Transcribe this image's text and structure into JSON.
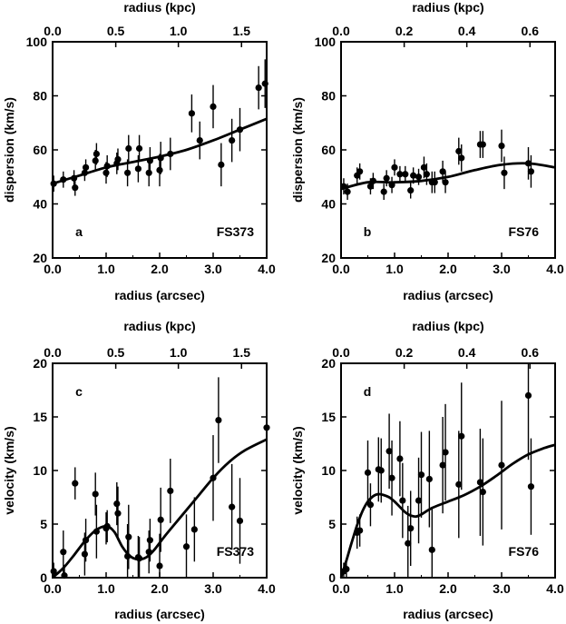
{
  "chart_data": [
    {
      "type": "scatter",
      "panel_label": "a",
      "object_label": "FS373",
      "xlabel": "radius (arcsec)",
      "ylabel": "dispersion (km/s)",
      "top_xlabel": "radius (kpc)",
      "xlim": [
        0,
        4
      ],
      "ylim": [
        20,
        100
      ],
      "xticks": [
        0,
        1,
        2,
        3,
        4
      ],
      "xtick_labels": [
        "0.0",
        "1.0",
        "2.0",
        "3.0",
        "4.0"
      ],
      "yticks": [
        20,
        40,
        60,
        80,
        100
      ],
      "ytick_labels": [
        "20",
        "40",
        "60",
        "80",
        "100"
      ],
      "top_ticks_arcsec": [
        0.0,
        1.18,
        2.35,
        3.53
      ],
      "top_tick_labels": [
        "0.0",
        "0.5",
        "1.0",
        "1.5"
      ],
      "points": [
        {
          "x": 0.02,
          "y": 47.5,
          "err": 3
        },
        {
          "x": 0.2,
          "y": 49,
          "err": 3
        },
        {
          "x": 0.4,
          "y": 49.5,
          "err": 3
        },
        {
          "x": 0.42,
          "y": 46,
          "err": 3
        },
        {
          "x": 0.6,
          "y": 51.5,
          "err": 3
        },
        {
          "x": 0.62,
          "y": 53.5,
          "err": 3
        },
        {
          "x": 0.8,
          "y": 56,
          "err": 4
        },
        {
          "x": 0.82,
          "y": 58.5,
          "err": 4
        },
        {
          "x": 1.0,
          "y": 51.5,
          "err": 4
        },
        {
          "x": 1.02,
          "y": 54,
          "err": 4
        },
        {
          "x": 1.2,
          "y": 55,
          "err": 4
        },
        {
          "x": 1.22,
          "y": 56.5,
          "err": 4
        },
        {
          "x": 1.4,
          "y": 51.5,
          "err": 5
        },
        {
          "x": 1.42,
          "y": 60.5,
          "err": 5
        },
        {
          "x": 1.6,
          "y": 53,
          "err": 5
        },
        {
          "x": 1.62,
          "y": 60.5,
          "err": 5
        },
        {
          "x": 1.8,
          "y": 51.5,
          "err": 5
        },
        {
          "x": 1.82,
          "y": 56,
          "err": 5
        },
        {
          "x": 2.0,
          "y": 52.5,
          "err": 6
        },
        {
          "x": 2.02,
          "y": 57,
          "err": 6
        },
        {
          "x": 2.2,
          "y": 58.5,
          "err": 6
        },
        {
          "x": 2.6,
          "y": 73.5,
          "err": 7
        },
        {
          "x": 2.75,
          "y": 63.5,
          "err": 7
        },
        {
          "x": 3.0,
          "y": 76,
          "err": 8
        },
        {
          "x": 3.15,
          "y": 54.5,
          "err": 8
        },
        {
          "x": 3.35,
          "y": 63.5,
          "err": 8
        },
        {
          "x": 3.5,
          "y": 67.5,
          "err": 8
        },
        {
          "x": 3.85,
          "y": 83,
          "err": 8
        },
        {
          "x": 3.97,
          "y": 84.5,
          "err": 9
        }
      ],
      "model": {
        "x": [
          0,
          0.5,
          1.0,
          1.5,
          2.0,
          2.5,
          3.0,
          3.5,
          4.0
        ],
        "y": [
          47.5,
          50.5,
          53.5,
          55.5,
          57.5,
          60,
          63.5,
          67.5,
          71.5
        ]
      }
    },
    {
      "type": "scatter",
      "panel_label": "b",
      "object_label": "FS76",
      "xlabel": "radius (arcsec)",
      "ylabel": "dispersion (km/s)",
      "top_xlabel": "radius (kpc)",
      "xlim": [
        0,
        4
      ],
      "ylim": [
        20,
        100
      ],
      "xticks": [
        0,
        1,
        2,
        3,
        4
      ],
      "xtick_labels": [
        "0.0",
        "1.0",
        "2.0",
        "3.0",
        "4.0"
      ],
      "yticks": [
        20,
        40,
        60,
        80,
        100
      ],
      "ytick_labels": [
        "20",
        "40",
        "60",
        "80",
        "100"
      ],
      "top_ticks_arcsec": [
        0.0,
        1.18,
        2.35,
        3.53
      ],
      "top_tick_labels": [
        "0.0",
        "0.2",
        "0.4",
        "0.6"
      ],
      "points": [
        {
          "x": 0.05,
          "y": 46.5,
          "err": 3
        },
        {
          "x": 0.12,
          "y": 44.5,
          "err": 3
        },
        {
          "x": 0.3,
          "y": 50.5,
          "err": 3
        },
        {
          "x": 0.35,
          "y": 52,
          "err": 3
        },
        {
          "x": 0.55,
          "y": 46.5,
          "err": 3
        },
        {
          "x": 0.6,
          "y": 48.5,
          "err": 3
        },
        {
          "x": 0.8,
          "y": 44.5,
          "err": 3
        },
        {
          "x": 0.85,
          "y": 49.5,
          "err": 3
        },
        {
          "x": 0.95,
          "y": 47,
          "err": 3
        },
        {
          "x": 1.0,
          "y": 53.5,
          "err": 3
        },
        {
          "x": 1.1,
          "y": 51,
          "err": 3
        },
        {
          "x": 1.2,
          "y": 51,
          "err": 3
        },
        {
          "x": 1.3,
          "y": 45,
          "err": 3
        },
        {
          "x": 1.35,
          "y": 50.5,
          "err": 3
        },
        {
          "x": 1.45,
          "y": 50,
          "err": 3
        },
        {
          "x": 1.55,
          "y": 53.5,
          "err": 4
        },
        {
          "x": 1.6,
          "y": 51,
          "err": 4
        },
        {
          "x": 1.7,
          "y": 48,
          "err": 4
        },
        {
          "x": 1.75,
          "y": 48,
          "err": 4
        },
        {
          "x": 1.9,
          "y": 52,
          "err": 4
        },
        {
          "x": 1.95,
          "y": 48,
          "err": 4
        },
        {
          "x": 2.2,
          "y": 59.5,
          "err": 5
        },
        {
          "x": 2.25,
          "y": 57,
          "err": 5
        },
        {
          "x": 2.6,
          "y": 62,
          "err": 5
        },
        {
          "x": 2.65,
          "y": 62,
          "err": 5
        },
        {
          "x": 3.0,
          "y": 61.5,
          "err": 6
        },
        {
          "x": 3.05,
          "y": 51.5,
          "err": 6
        },
        {
          "x": 3.5,
          "y": 55,
          "err": 6
        },
        {
          "x": 3.55,
          "y": 52,
          "err": 6
        }
      ],
      "model": {
        "x": [
          0,
          0.5,
          1.0,
          1.5,
          2.0,
          2.5,
          3.0,
          3.5,
          4.0
        ],
        "y": [
          45.5,
          48,
          48,
          48.5,
          50,
          52.5,
          54.5,
          55,
          53.5
        ]
      }
    },
    {
      "type": "scatter",
      "panel_label": "c",
      "object_label": "FS373",
      "xlabel": "radius (arcsec)",
      "ylabel": "velocity (km/s)",
      "top_xlabel": "radius (kpc)",
      "xlim": [
        0,
        4
      ],
      "ylim": [
        0,
        20
      ],
      "xticks": [
        0,
        1,
        2,
        3,
        4
      ],
      "xtick_labels": [
        "0.0",
        "1.0",
        "2.0",
        "3.0",
        "4.0"
      ],
      "yticks": [
        0,
        5,
        10,
        15,
        20
      ],
      "ytick_labels": [
        "0",
        "5",
        "10",
        "15",
        "20"
      ],
      "top_ticks_arcsec": [
        0.0,
        1.18,
        2.35,
        3.53
      ],
      "top_tick_labels": [
        "0.0",
        "0.5",
        "1.0",
        "1.5"
      ],
      "points": [
        {
          "x": 0.02,
          "y": 0.6,
          "err": 0.8
        },
        {
          "x": 0.2,
          "y": 2.4,
          "err": 2
        },
        {
          "x": 0.22,
          "y": 0.2,
          "err": 1
        },
        {
          "x": 0.42,
          "y": 8.8,
          "err": 1.5
        },
        {
          "x": 0.6,
          "y": 2.2,
          "err": 2
        },
        {
          "x": 0.62,
          "y": 3.5,
          "err": 2
        },
        {
          "x": 0.8,
          "y": 7.8,
          "err": 2
        },
        {
          "x": 0.82,
          "y": 4.3,
          "err": 2.5
        },
        {
          "x": 1.0,
          "y": 4.6,
          "err": 1.5
        },
        {
          "x": 1.02,
          "y": 4.8,
          "err": 1.5
        },
        {
          "x": 1.2,
          "y": 6.9,
          "err": 2
        },
        {
          "x": 1.22,
          "y": 6.0,
          "err": 2.5
        },
        {
          "x": 1.4,
          "y": 2.0,
          "err": 3
        },
        {
          "x": 1.42,
          "y": 3.8,
          "err": 3
        },
        {
          "x": 1.6,
          "y": 1.9,
          "err": 2
        },
        {
          "x": 1.62,
          "y": 1.8,
          "err": 2
        },
        {
          "x": 1.8,
          "y": 2.4,
          "err": 2
        },
        {
          "x": 1.82,
          "y": 3.5,
          "err": 2
        },
        {
          "x": 2.0,
          "y": 1.1,
          "err": 3
        },
        {
          "x": 2.02,
          "y": 5.4,
          "err": 3
        },
        {
          "x": 2.2,
          "y": 8.1,
          "err": 3
        },
        {
          "x": 2.5,
          "y": 2.9,
          "err": 3
        },
        {
          "x": 2.65,
          "y": 4.5,
          "err": 3
        },
        {
          "x": 3.0,
          "y": 9.3,
          "err": 4
        },
        {
          "x": 3.1,
          "y": 14.7,
          "err": 4
        },
        {
          "x": 3.35,
          "y": 6.6,
          "err": 4
        },
        {
          "x": 3.5,
          "y": 5.3,
          "err": 4
        },
        {
          "x": 4.0,
          "y": 14.0,
          "err": 4.5
        }
      ],
      "model": {
        "x": [
          0,
          0.2,
          0.4,
          0.6,
          0.8,
          1.0,
          1.15,
          1.3,
          1.45,
          1.6,
          1.75,
          1.9,
          2.1,
          2.4,
          2.7,
          3.0,
          3.3,
          3.6,
          4.0
        ],
        "y": [
          0,
          0.9,
          2.1,
          3.4,
          4.4,
          4.8,
          4.3,
          2.9,
          2.0,
          1.7,
          1.9,
          2.6,
          3.9,
          5.7,
          7.5,
          9.3,
          10.8,
          11.9,
          12.9
        ]
      }
    },
    {
      "type": "scatter",
      "panel_label": "d",
      "object_label": "FS76",
      "xlabel": "radius (arcsec)",
      "ylabel": "velocity (km/s)",
      "top_xlabel": "radius (kpc)",
      "xlim": [
        0,
        4
      ],
      "ylim": [
        0,
        20
      ],
      "xticks": [
        0,
        1,
        2,
        3,
        4
      ],
      "xtick_labels": [
        "0.0",
        "1.0",
        "2.0",
        "3.0",
        "4.0"
      ],
      "yticks": [
        0,
        5,
        10,
        15,
        20
      ],
      "ytick_labels": [
        "0",
        "5",
        "10",
        "15",
        "20"
      ],
      "top_ticks_arcsec": [
        0.0,
        1.18,
        2.35,
        3.53
      ],
      "top_tick_labels": [
        "0.0",
        "0.2",
        "0.4",
        "0.6"
      ],
      "points": [
        {
          "x": 0.05,
          "y": 0.6,
          "err": 0.8
        },
        {
          "x": 0.1,
          "y": 0.8,
          "err": 1
        },
        {
          "x": 0.3,
          "y": 4.2,
          "err": 1.5
        },
        {
          "x": 0.35,
          "y": 4.4,
          "err": 1.5
        },
        {
          "x": 0.5,
          "y": 9.8,
          "err": 3
        },
        {
          "x": 0.55,
          "y": 6.8,
          "err": 2
        },
        {
          "x": 0.7,
          "y": 10.1,
          "err": 3
        },
        {
          "x": 0.75,
          "y": 10.0,
          "err": 3
        },
        {
          "x": 0.9,
          "y": 11.8,
          "err": 3.5
        },
        {
          "x": 0.95,
          "y": 9.3,
          "err": 3.5
        },
        {
          "x": 1.1,
          "y": 11.1,
          "err": 3.5
        },
        {
          "x": 1.15,
          "y": 7.2,
          "err": 3.5
        },
        {
          "x": 1.25,
          "y": 3.2,
          "err": 3.5
        },
        {
          "x": 1.3,
          "y": 4.6,
          "err": 3.5
        },
        {
          "x": 1.45,
          "y": 7.2,
          "err": 4
        },
        {
          "x": 1.5,
          "y": 9.6,
          "err": 4
        },
        {
          "x": 1.65,
          "y": 9.2,
          "err": 4.5
        },
        {
          "x": 1.7,
          "y": 2.6,
          "err": 4
        },
        {
          "x": 1.9,
          "y": 10.5,
          "err": 4.5
        },
        {
          "x": 1.95,
          "y": 11.7,
          "err": 4.5
        },
        {
          "x": 2.2,
          "y": 8.7,
          "err": 5
        },
        {
          "x": 2.25,
          "y": 13.2,
          "err": 5
        },
        {
          "x": 2.6,
          "y": 8.9,
          "err": 5
        },
        {
          "x": 2.65,
          "y": 8.0,
          "err": 5
        },
        {
          "x": 3.0,
          "y": 10.5,
          "err": 6
        },
        {
          "x": 3.5,
          "y": 17.0,
          "err": 6
        },
        {
          "x": 3.55,
          "y": 8.5,
          "err": 4.5
        }
      ],
      "model": {
        "x": [
          0,
          0.1,
          0.2,
          0.3,
          0.4,
          0.5,
          0.6,
          0.7,
          0.8,
          0.9,
          1.0,
          1.1,
          1.2,
          1.3,
          1.4,
          1.5,
          1.7,
          2.0,
          2.3,
          2.6,
          2.9,
          3.2,
          3.5,
          3.8,
          4.0
        ],
        "y": [
          0,
          1.6,
          3.3,
          4.9,
          6.2,
          7.1,
          7.6,
          7.8,
          7.7,
          7.5,
          7.1,
          6.6,
          6.1,
          5.8,
          5.7,
          5.9,
          6.5,
          7.1,
          7.7,
          8.5,
          9.5,
          10.6,
          11.5,
          12.1,
          12.4
        ]
      }
    }
  ]
}
